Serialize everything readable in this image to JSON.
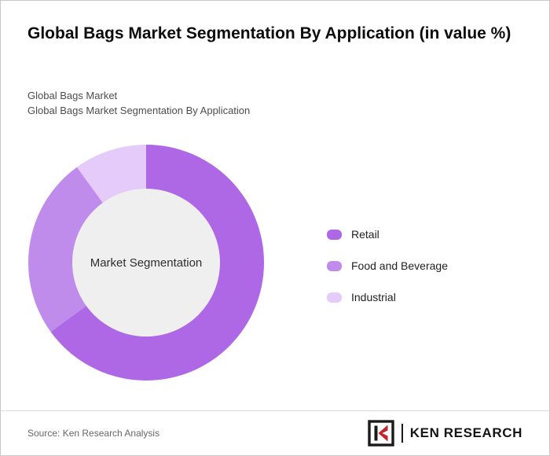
{
  "page": {
    "title": "Global Bags Market Segmentation By Application (in value %)",
    "subtitle_line1": "Global Bags Market",
    "subtitle_line2": "Global Bags Market Segmentation By Application",
    "source": "Source: Ken Research Analysis",
    "brand": "KEN RESEARCH"
  },
  "chart_data": {
    "type": "pie",
    "subtype": "donut",
    "title": "Global Bags Market Segmentation By Application (in value %)",
    "center_label": "Market Segmentation",
    "categories": [
      "Retail",
      "Food and Beverage",
      "Industrial"
    ],
    "values": [
      65,
      25,
      10
    ],
    "unit": "value %",
    "colors": [
      "#ae67e5",
      "#c08ceb",
      "#e5cbf9"
    ],
    "center_fill": "#efefef",
    "legend_position": "right",
    "start_angle_deg": 0,
    "direction": "clockwise"
  }
}
